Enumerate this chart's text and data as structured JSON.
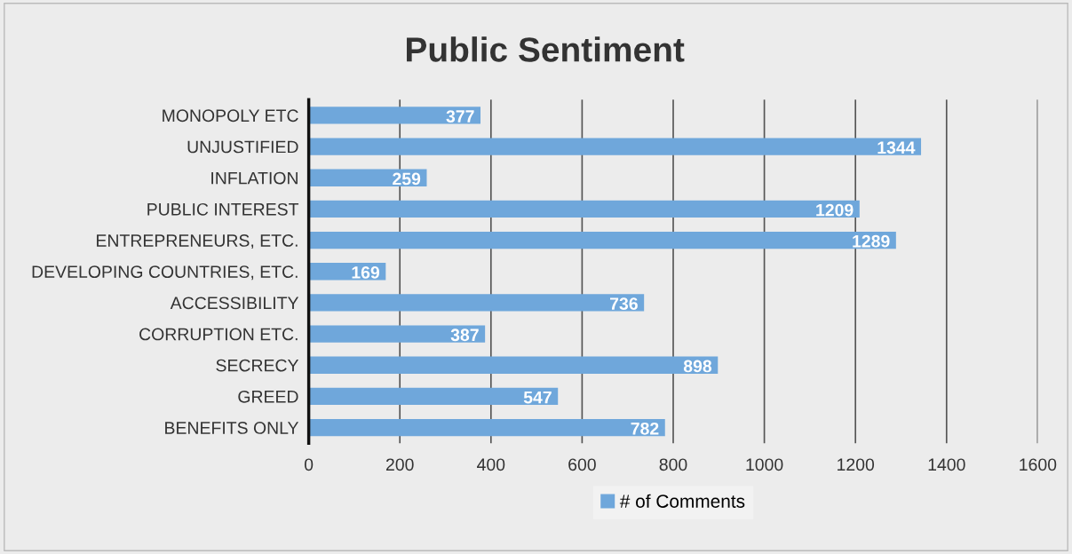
{
  "chart_data": {
    "type": "bar",
    "orientation": "horizontal",
    "title": "Public Sentiment",
    "categories": [
      "MONOPOLY ETC",
      "UNJUSTIFIED",
      "INFLATION",
      "PUBLIC INTEREST",
      "ENTREPRENEURS, ETC.",
      "DEVELOPING COUNTRIES, ETC.",
      "ACCESSIBILITY",
      "CORRUPTION ETC.",
      "SECRECY",
      "GREED",
      "BENEFITS ONLY"
    ],
    "series": [
      {
        "name": "# of Comments",
        "color": "#6fa7db",
        "values": [
          377,
          1344,
          259,
          1209,
          1289,
          169,
          736,
          387,
          898,
          547,
          782
        ]
      }
    ],
    "xlim": [
      0,
      1600
    ],
    "xticks": [
      0,
      200,
      400,
      600,
      800,
      1000,
      1200,
      1400,
      1600
    ],
    "grid": "x",
    "legend": "bottom",
    "data_labels": true
  }
}
